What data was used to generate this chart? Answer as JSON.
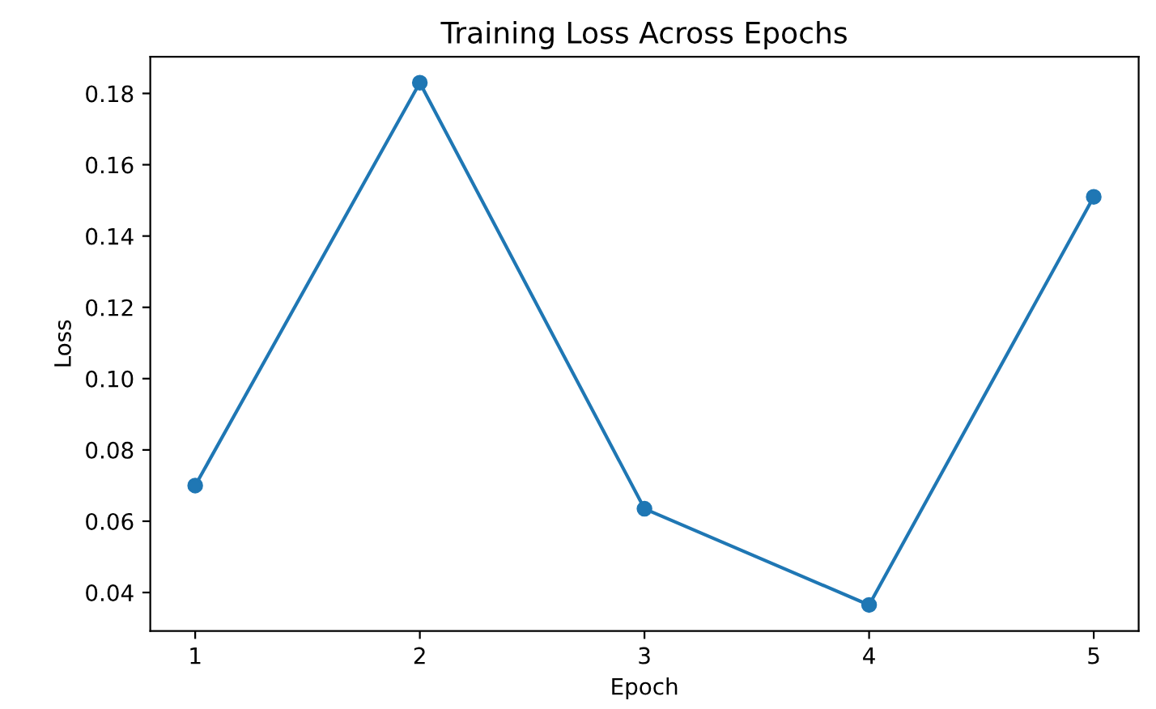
{
  "chart_data": {
    "type": "line",
    "title": "Training Loss Across Epochs",
    "xlabel": "Epoch",
    "ylabel": "Loss",
    "x": [
      1,
      2,
      3,
      4,
      5
    ],
    "series": [
      {
        "color": "#1f77b4",
        "values": [
          0.07,
          0.183,
          0.0635,
          0.0365,
          0.151
        ]
      }
    ],
    "xlim": [
      0.8,
      5.2
    ],
    "xticks": [
      1,
      2,
      3,
      4,
      5
    ],
    "ylim": [
      0.0292,
      0.1903
    ],
    "yticks": [
      {
        "value": 0.04,
        "label": "0.04"
      },
      {
        "value": 0.06,
        "label": "0.06"
      },
      {
        "value": 0.08,
        "label": "0.08"
      },
      {
        "value": 0.1,
        "label": "0.10"
      },
      {
        "value": 0.12,
        "label": "0.12"
      },
      {
        "value": 0.14,
        "label": "0.14"
      },
      {
        "value": 0.16,
        "label": "0.16"
      },
      {
        "value": 0.18,
        "label": "0.18"
      }
    ],
    "marker": "circle",
    "line_style": "solid",
    "grid": false,
    "legend": false
  }
}
